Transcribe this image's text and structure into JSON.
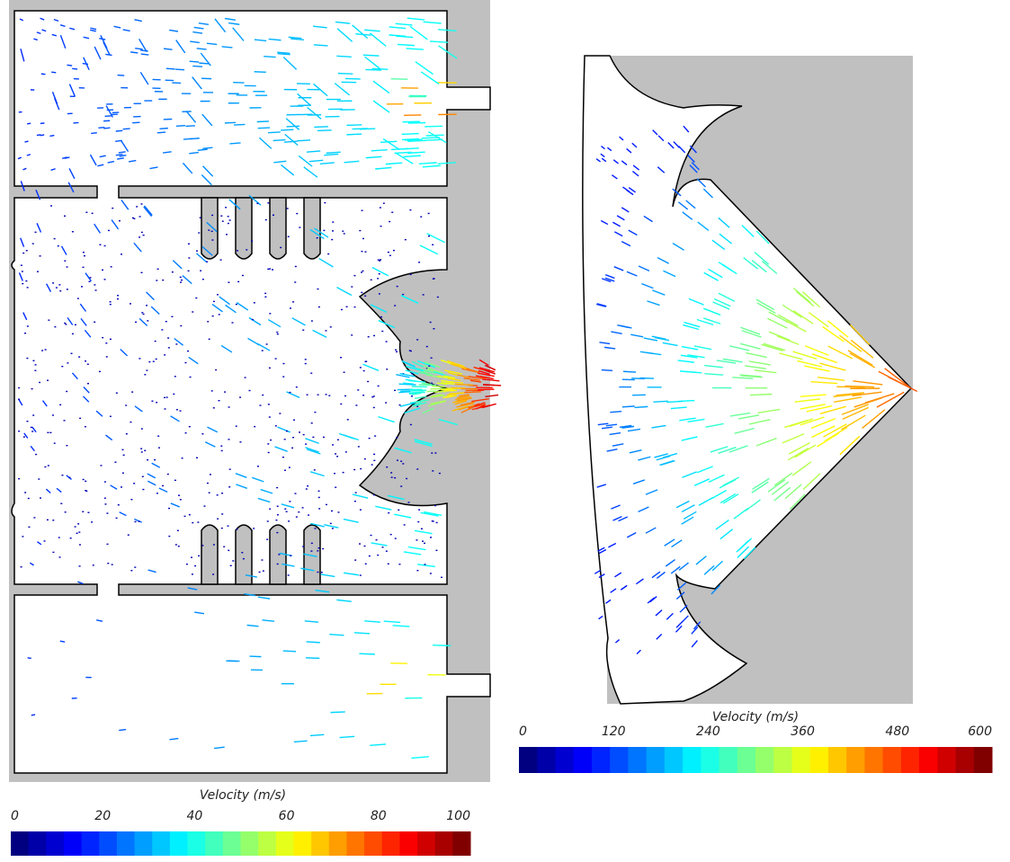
{
  "left_panel": {
    "colorbar": {
      "title": "Velocity (m/s)",
      "range": [
        0,
        100
      ],
      "ticks": [
        0,
        20,
        40,
        60,
        80,
        100
      ]
    }
  },
  "right_panel": {
    "colorbar": {
      "title": "Velocity (m/s)",
      "range": [
        0,
        600
      ],
      "ticks": [
        0,
        120,
        240,
        360,
        480,
        600
      ]
    }
  }
}
